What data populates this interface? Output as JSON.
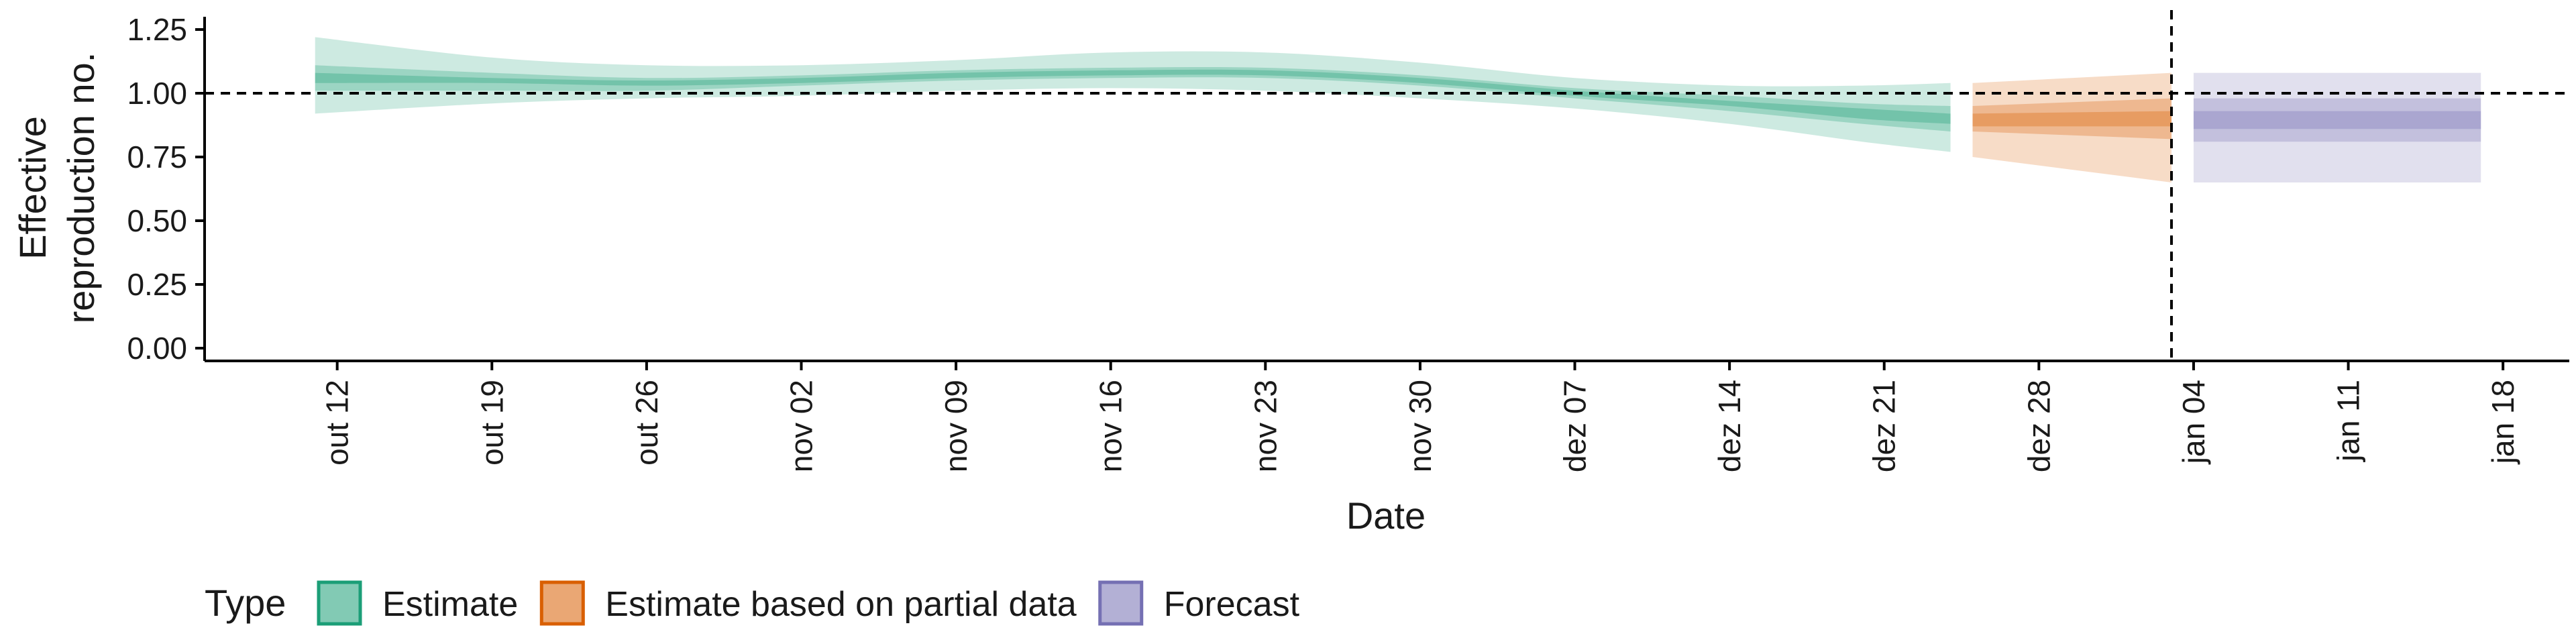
{
  "chart_data": {
    "type": "area",
    "xlabel": "Date",
    "ylabel": [
      "Effective",
      "reproduction no."
    ],
    "ylim": [
      -0.05,
      1.3
    ],
    "y_ticks": [
      0.0,
      0.25,
      0.5,
      0.75,
      1.0,
      1.25
    ],
    "y_tick_labels": [
      "0.00",
      "0.25",
      "0.50",
      "0.75",
      "1.00",
      "1.25"
    ],
    "x_ticks": [
      "2020-10-12",
      "2020-10-19",
      "2020-10-26",
      "2020-11-02",
      "2020-11-09",
      "2020-11-16",
      "2020-11-23",
      "2020-11-30",
      "2020-12-07",
      "2020-12-14",
      "2020-12-21",
      "2020-12-28",
      "2021-01-04",
      "2021-01-11",
      "2021-01-18"
    ],
    "x_tick_labels": [
      "out 12",
      "out 19",
      "out 26",
      "nov 02",
      "nov 09",
      "nov 16",
      "nov 23",
      "nov 30",
      "dez 07",
      "dez 14",
      "dez 21",
      "dez 28",
      "jan 04",
      "jan 11",
      "jan 18"
    ],
    "xlim": [
      "2020-10-06",
      "2021-01-21"
    ],
    "reference_line_y": 1.0,
    "vertical_line_date": "2021-01-03",
    "grid": false,
    "legend": {
      "title": "Type",
      "position": "bottom",
      "entries": [
        {
          "label": "Estimate",
          "color": "#1b9e77"
        },
        {
          "label": "Estimate based on partial data",
          "color": "#d95f02"
        },
        {
          "label": "Forecast",
          "color": "#7570b3"
        }
      ]
    },
    "series": [
      {
        "name": "Estimate",
        "color": "#1b9e77",
        "dates": [
          "2020-10-11",
          "2020-10-19",
          "2020-10-26",
          "2020-11-02",
          "2020-11-09",
          "2020-11-16",
          "2020-11-23",
          "2020-11-30",
          "2020-12-07",
          "2020-12-14",
          "2020-12-20",
          "2020-12-24"
        ],
        "median": [
          1.06,
          1.05,
          1.04,
          1.05,
          1.07,
          1.08,
          1.08,
          1.05,
          1.0,
          0.96,
          0.92,
          0.9
        ],
        "lower_20": [
          1.04,
          1.04,
          1.03,
          1.04,
          1.06,
          1.07,
          1.07,
          1.04,
          0.99,
          0.95,
          0.9,
          0.88
        ],
        "upper_20": [
          1.08,
          1.06,
          1.05,
          1.06,
          1.08,
          1.09,
          1.09,
          1.06,
          1.01,
          0.97,
          0.94,
          0.92
        ],
        "lower_50": [
          1.01,
          1.01,
          1.01,
          1.03,
          1.05,
          1.06,
          1.06,
          1.03,
          0.98,
          0.93,
          0.88,
          0.85
        ],
        "upper_50": [
          1.11,
          1.08,
          1.06,
          1.07,
          1.09,
          1.1,
          1.1,
          1.07,
          1.02,
          0.99,
          0.96,
          0.95
        ],
        "lower_90": [
          0.92,
          0.96,
          0.98,
          0.99,
          1.01,
          1.02,
          1.01,
          0.98,
          0.94,
          0.88,
          0.81,
          0.77
        ],
        "upper_90": [
          1.22,
          1.14,
          1.11,
          1.11,
          1.13,
          1.16,
          1.16,
          1.12,
          1.06,
          1.03,
          1.03,
          1.04
        ]
      },
      {
        "name": "Estimate based on partial data",
        "color": "#d95f02",
        "dates": [
          "2020-12-25",
          "2021-01-03"
        ],
        "median": [
          0.9,
          0.9
        ],
        "lower_20": [
          0.87,
          0.87
        ],
        "upper_20": [
          0.92,
          0.93
        ],
        "lower_50": [
          0.85,
          0.82
        ],
        "upper_50": [
          0.95,
          0.98
        ],
        "lower_90": [
          0.75,
          0.65
        ],
        "upper_90": [
          1.04,
          1.08
        ]
      },
      {
        "name": "Forecast",
        "color": "#7570b3",
        "dates": [
          "2021-01-04",
          "2021-01-17"
        ],
        "median": [
          0.9,
          0.9
        ],
        "lower_20": [
          0.86,
          0.86
        ],
        "upper_20": [
          0.93,
          0.93
        ],
        "lower_50": [
          0.81,
          0.81
        ],
        "upper_50": [
          0.98,
          0.98
        ],
        "lower_90": [
          0.65,
          0.65
        ],
        "upper_90": [
          1.08,
          1.08
        ]
      }
    ]
  }
}
